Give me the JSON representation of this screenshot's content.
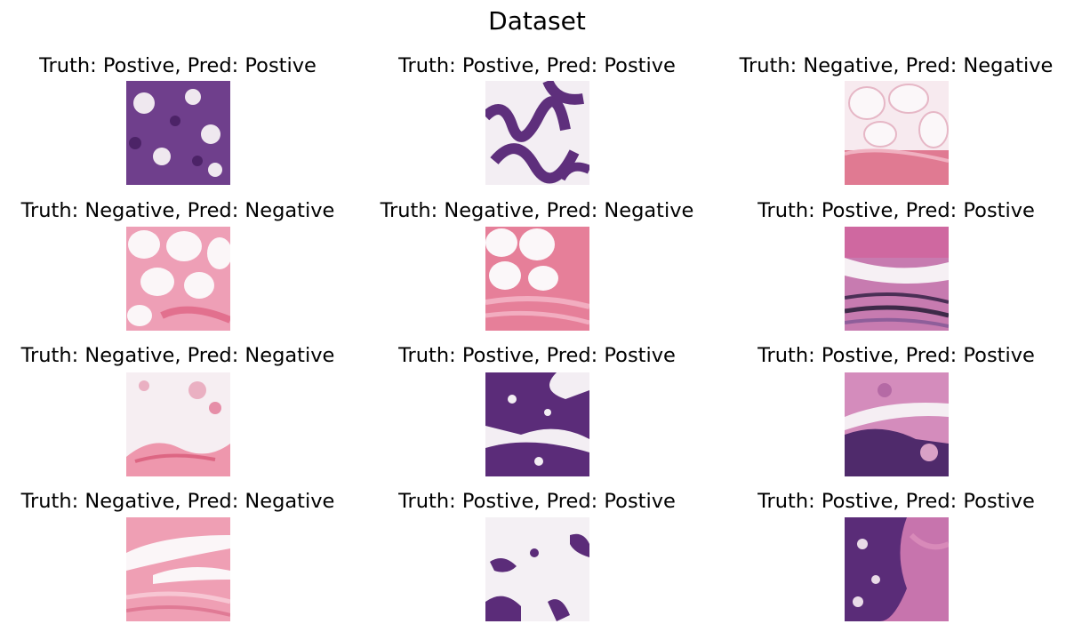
{
  "figure": {
    "title": "Dataset"
  },
  "colors": {
    "positive_dark": "#5a2c78",
    "positive_mid": "#8a4f9f",
    "stroma_pink": "#e07898",
    "stroma_light": "#f2b8c8",
    "background_white": "#f4eef2"
  },
  "panels": [
    {
      "truth": "Postive",
      "pred": "Postive",
      "label": "Truth: Postive, Pred: Postive"
    },
    {
      "truth": "Postive",
      "pred": "Postive",
      "label": "Truth: Postive, Pred: Postive"
    },
    {
      "truth": "Negative",
      "pred": "Negative",
      "label": "Truth: Negative, Pred: Negative"
    },
    {
      "truth": "Negative",
      "pred": "Negative",
      "label": "Truth: Negative, Pred: Negative"
    },
    {
      "truth": "Negative",
      "pred": "Negative",
      "label": "Truth: Negative, Pred: Negative"
    },
    {
      "truth": "Postive",
      "pred": "Postive",
      "label": "Truth: Postive, Pred: Postive"
    },
    {
      "truth": "Negative",
      "pred": "Negative",
      "label": "Truth: Negative, Pred: Negative"
    },
    {
      "truth": "Postive",
      "pred": "Postive",
      "label": "Truth: Postive, Pred: Postive"
    },
    {
      "truth": "Postive",
      "pred": "Postive",
      "label": "Truth: Postive, Pred: Postive"
    },
    {
      "truth": "Negative",
      "pred": "Negative",
      "label": "Truth: Negative, Pred: Negative"
    },
    {
      "truth": "Postive",
      "pred": "Postive",
      "label": "Truth: Postive, Pred: Postive"
    },
    {
      "truth": "Postive",
      "pred": "Postive",
      "label": "Truth: Postive, Pred: Postive"
    }
  ]
}
